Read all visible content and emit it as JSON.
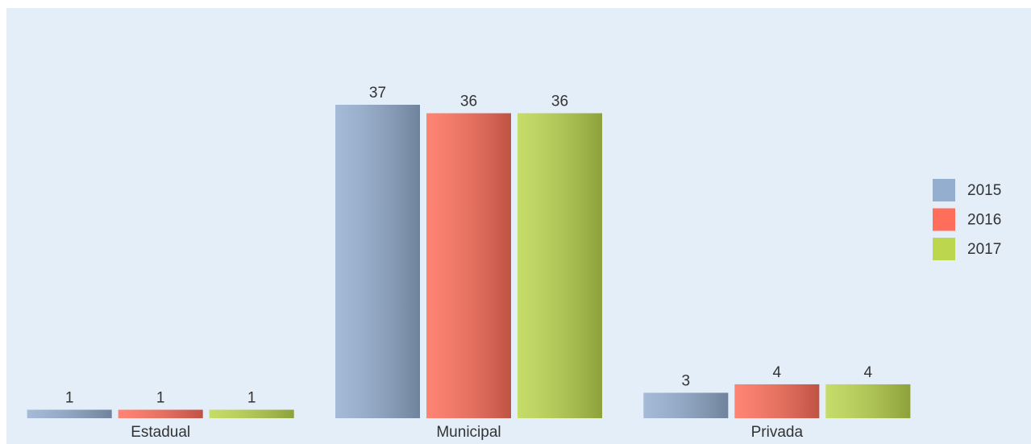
{
  "chart_data": {
    "type": "bar",
    "categories": [
      "Estadual",
      "Municipal",
      "Privada"
    ],
    "series": [
      {
        "name": "2015",
        "color": "#94aed0",
        "values": [
          1,
          37,
          3
        ]
      },
      {
        "name": "2016",
        "color": "#ff6e5a",
        "values": [
          1,
          36,
          4
        ]
      },
      {
        "name": "2017",
        "color": "#bcd64e",
        "values": [
          1,
          36,
          4
        ]
      }
    ],
    "ylim": [
      0,
      37
    ],
    "legend": "right"
  }
}
